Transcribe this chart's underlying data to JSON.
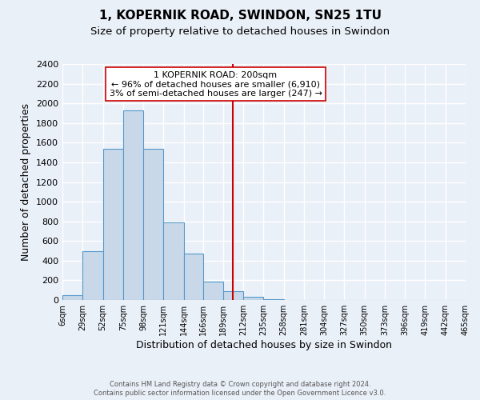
{
  "title": "1, KOPERNIK ROAD, SWINDON, SN25 1TU",
  "subtitle": "Size of property relative to detached houses in Swindon",
  "xlabel": "Distribution of detached houses by size in Swindon",
  "ylabel": "Number of detached properties",
  "bin_edges": [
    6,
    29,
    52,
    75,
    98,
    121,
    144,
    166,
    189,
    212,
    235,
    258,
    281,
    304,
    327,
    350,
    373,
    396,
    419,
    442,
    465
  ],
  "bar_heights": [
    50,
    500,
    1540,
    1930,
    1540,
    790,
    470,
    185,
    90,
    30,
    5,
    0,
    0,
    0,
    0,
    0,
    0,
    0,
    0,
    0
  ],
  "bar_color": "#c8d8e8",
  "bar_edge_color": "#5599cc",
  "vline_x": 200,
  "vline_color": "#cc0000",
  "annotation_line1": "1 KOPERNIK ROAD: 200sqm",
  "annotation_line2": "← 96% of detached houses are smaller (6,910)",
  "annotation_line3": "3% of semi-detached houses are larger (247) →",
  "annotation_box_color": "#ffffff",
  "annotation_box_edge": "#cc0000",
  "ylim": [
    0,
    2400
  ],
  "yticks": [
    0,
    200,
    400,
    600,
    800,
    1000,
    1200,
    1400,
    1600,
    1800,
    2000,
    2200,
    2400
  ],
  "footnote1": "Contains HM Land Registry data © Crown copyright and database right 2024.",
  "footnote2": "Contains public sector information licensed under the Open Government Licence v3.0.",
  "bg_color": "#eaf0f8",
  "plot_bg_color": "#eaf0f8",
  "grid_color": "#ffffff",
  "title_fontsize": 11,
  "subtitle_fontsize": 9.5
}
